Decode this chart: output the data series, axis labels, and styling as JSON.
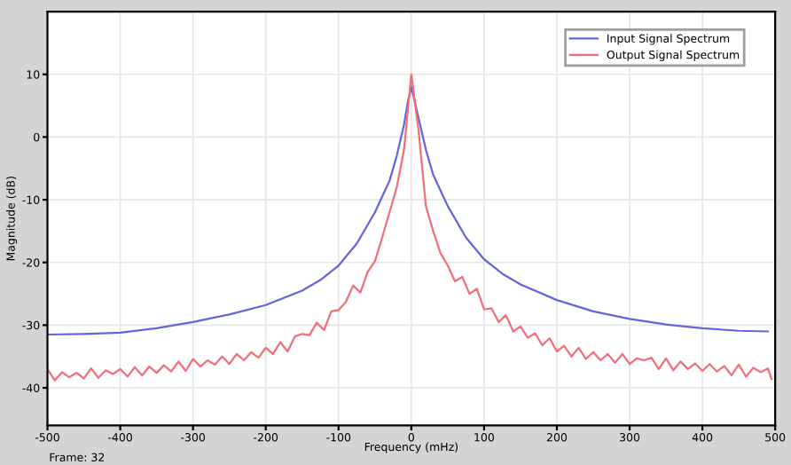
{
  "chart_data": {
    "type": "line",
    "xlabel": "Frequency (mHz)",
    "ylabel": "Magnitude (dB)",
    "annotations": [
      "Frame: 32"
    ],
    "xlim": [
      -500,
      500
    ],
    "ylim": [
      -46,
      20
    ],
    "xticks": [
      -500,
      -400,
      -300,
      -200,
      -100,
      0,
      100,
      200,
      300,
      400,
      500
    ],
    "yticks": [
      -40,
      -30,
      -20,
      -10,
      0,
      10
    ],
    "grid": true,
    "legend": "top right",
    "series": [
      {
        "name": "Input Signal Spectrum",
        "color": "#6464dc",
        "x": [
          -500,
          -450,
          -400,
          -350,
          -300,
          -250,
          -200,
          -150,
          -125,
          -100,
          -75,
          -50,
          -40,
          -30,
          -20,
          -10,
          -5,
          0,
          5,
          10,
          20,
          30,
          40,
          50,
          75,
          100,
          125,
          150,
          200,
          250,
          300,
          350,
          400,
          450,
          490
        ],
        "values": [
          -31.5,
          -31.4,
          -31.2,
          -30.5,
          -29.5,
          -28.3,
          -26.8,
          -24.5,
          -22.8,
          -20.5,
          -17,
          -12,
          -9.5,
          -7,
          -3,
          2,
          5.5,
          8,
          5.5,
          3,
          -2,
          -6,
          -8.5,
          -11,
          -16,
          -19.5,
          -21.8,
          -23.5,
          -26,
          -27.8,
          -29,
          -29.9,
          -30.5,
          -30.9,
          -31
        ]
      },
      {
        "name": "Output Signal Spectrum",
        "color": "#f06e78",
        "x": [
          -500,
          -490,
          -480,
          -470,
          -460,
          -450,
          -440,
          -430,
          -420,
          -410,
          -400,
          -390,
          -380,
          -370,
          -360,
          -350,
          -340,
          -330,
          -320,
          -310,
          -300,
          -290,
          -280,
          -270,
          -260,
          -250,
          -240,
          -230,
          -220,
          -210,
          -200,
          -190,
          -180,
          -170,
          -160,
          -150,
          -140,
          -130,
          -120,
          -110,
          -100,
          -90,
          -80,
          -70,
          -60,
          -50,
          -40,
          -30,
          -20,
          -10,
          0,
          10,
          20,
          30,
          40,
          50,
          60,
          70,
          80,
          90,
          100,
          110,
          120,
          130,
          140,
          150,
          160,
          170,
          180,
          190,
          200,
          210,
          220,
          230,
          240,
          250,
          260,
          270,
          280,
          290,
          300,
          310,
          320,
          330,
          340,
          350,
          360,
          370,
          380,
          390,
          400,
          410,
          420,
          430,
          440,
          450,
          460,
          470,
          480,
          490,
          495
        ],
        "values": [
          -37,
          -38.8,
          -37.5,
          -38.3,
          -37.6,
          -38.5,
          -36.9,
          -38.4,
          -37.2,
          -37.8,
          -37,
          -38.2,
          -36.7,
          -38,
          -36.6,
          -37.6,
          -36.4,
          -37.4,
          -35.8,
          -37.3,
          -35.4,
          -36.6,
          -35.6,
          -36.3,
          -35,
          -36.2,
          -34.6,
          -35.6,
          -34.3,
          -35.2,
          -33.6,
          -34.6,
          -32.7,
          -34.2,
          -31.8,
          -31.4,
          -31.6,
          -29.6,
          -30.8,
          -27.8,
          -27.6,
          -26.3,
          -23.7,
          -24.8,
          -21.5,
          -19.8,
          -16,
          -12,
          -8,
          -2,
          10,
          1,
          -11,
          -15,
          -18.5,
          -20.5,
          -23,
          -22.3,
          -25,
          -24.2,
          -27.5,
          -27.3,
          -29.5,
          -28.4,
          -31,
          -30.2,
          -32,
          -31.3,
          -33.2,
          -32.1,
          -34.2,
          -33.3,
          -35,
          -33.6,
          -35.4,
          -34.3,
          -35.6,
          -34.6,
          -36,
          -34.6,
          -36.2,
          -35.3,
          -35.6,
          -35.2,
          -37,
          -35.3,
          -37.2,
          -35.8,
          -37,
          -36.1,
          -37.3,
          -36.2,
          -37.4,
          -36.5,
          -38,
          -36.3,
          -38.2,
          -36.8,
          -37.5,
          -36.9,
          -38.6
        ]
      }
    ]
  }
}
